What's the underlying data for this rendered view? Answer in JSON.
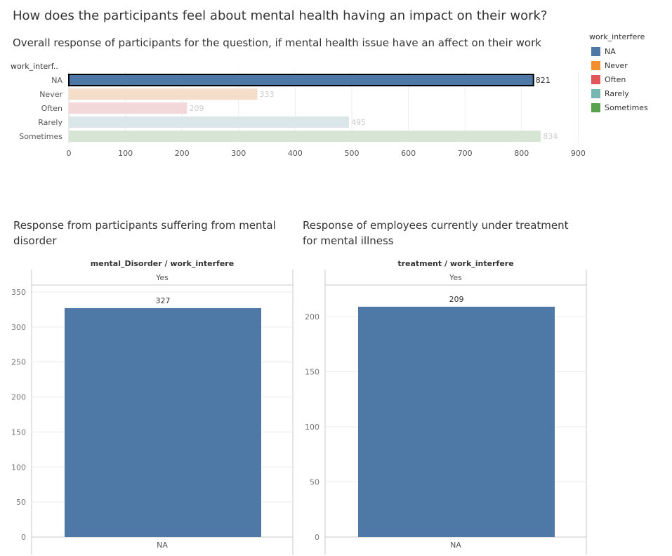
{
  "title": "How does the participants feel about mental health having an impact on their work?",
  "bar_chart_subtitle": "Overall response of participants for the question, if mental health issue have an affect on their work",
  "panel1_title": "Response from participants suffering from mental disorder",
  "panel2_title": "Response of employees currently under treatment for mental illness",
  "legend": {
    "title": "work_interfere",
    "items": [
      {
        "label": "NA",
        "color": "#4e79a7"
      },
      {
        "label": "Never",
        "color": "#f28e2b"
      },
      {
        "label": "Often",
        "color": "#e15759"
      },
      {
        "label": "Rarely",
        "color": "#76b7b2"
      },
      {
        "label": "Sometimes",
        "color": "#59a14f"
      }
    ]
  },
  "chart_data": [
    {
      "type": "bar",
      "orientation": "horizontal",
      "ylabel": "work_interf..",
      "categories": [
        "NA",
        "Never",
        "Often",
        "Rarely",
        "Sometimes"
      ],
      "values": [
        821,
        333,
        209,
        495,
        834
      ],
      "colors": [
        "#4e79a7",
        "#f4ddc9",
        "#f2d8d8",
        "#dbe6e8",
        "#d6e5d4"
      ],
      "xlim": [
        0,
        900
      ],
      "xticks": [
        0,
        100,
        200,
        300,
        400,
        500,
        600,
        700,
        800,
        900
      ],
      "highlighted": "NA"
    },
    {
      "type": "bar",
      "header": "mental_Disorder / work_interfere",
      "column": "Yes",
      "categories": [
        "NA"
      ],
      "values": [
        327
      ],
      "color": "#4e79a7",
      "ylim": [
        0,
        350
      ],
      "yticks": [
        0,
        50,
        100,
        150,
        200,
        250,
        300,
        350
      ]
    },
    {
      "type": "bar",
      "header": "treatment / work_interfere",
      "column": "Yes",
      "categories": [
        "NA"
      ],
      "values": [
        209
      ],
      "color": "#4e79a7",
      "ylim": [
        0,
        200
      ],
      "yticks": [
        0,
        50,
        100,
        150,
        200
      ]
    }
  ]
}
